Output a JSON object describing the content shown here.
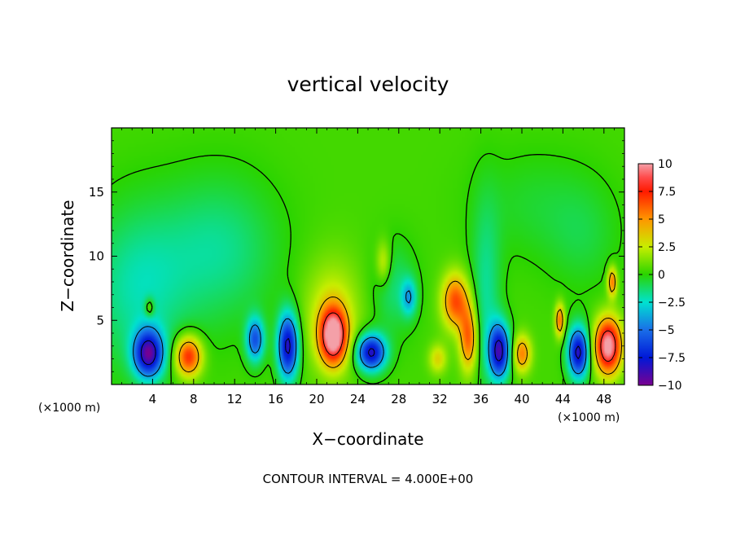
{
  "chart_data": {
    "type": "heatmap",
    "title": "vertical velocity",
    "xlabel": "X−coordinate",
    "ylabel": "Z−coordinate",
    "x_unit_label": "(×1000 m)",
    "y_unit_label": "(×1000 m)",
    "xlim": [
      0,
      50
    ],
    "ylim": [
      0,
      20
    ],
    "x_ticks": [
      4,
      8,
      12,
      16,
      20,
      24,
      28,
      32,
      36,
      40,
      44,
      48
    ],
    "x_tick_labels": [
      "4",
      "8",
      "12",
      "16",
      "20",
      "24",
      "28",
      "32",
      "36",
      "40",
      "44",
      "48"
    ],
    "y_ticks": [
      5,
      10,
      15
    ],
    "y_tick_labels": [
      "5",
      "10",
      "15"
    ],
    "colorbar": {
      "min": -10,
      "max": 10,
      "ticks": [
        10,
        7.5,
        5,
        2.5,
        0,
        -2.5,
        -5,
        -7.5,
        -10
      ],
      "tick_labels": [
        "10",
        "7.5",
        "5",
        "2.5",
        "0",
        "−2.5",
        "−5",
        "−7.5",
        "−10"
      ],
      "stops": [
        {
          "value": 10,
          "color": "#f4a0a8"
        },
        {
          "value": 8.75,
          "color": "#ff4a4a"
        },
        {
          "value": 7.5,
          "color": "#ff1a00"
        },
        {
          "value": 5,
          "color": "#ff9600"
        },
        {
          "value": 2.5,
          "color": "#c8ee00"
        },
        {
          "value": 0,
          "color": "#2ad400"
        },
        {
          "value": -2.5,
          "color": "#00e2d0"
        },
        {
          "value": -5,
          "color": "#1a6ee8"
        },
        {
          "value": -7.5,
          "color": "#0018d8"
        },
        {
          "value": -10,
          "color": "#7a0090"
        }
      ]
    },
    "background_value": 0.4,
    "features": [
      {
        "x": 3.6,
        "z": 2.4,
        "w": -9.2,
        "sx": 1.0,
        "sz": 1.3
      },
      {
        "x": 2.5,
        "z": 7.5,
        "w": -2.4,
        "sx": 3.5,
        "sz": 4.5
      },
      {
        "x": 3.7,
        "z": 6.0,
        "w": 3.2,
        "sx": 0.3,
        "sz": 0.5
      },
      {
        "x": 7.5,
        "z": 2.2,
        "w": 7.4,
        "sx": 0.9,
        "sz": 1.1
      },
      {
        "x": 10.5,
        "z": 10.5,
        "w": -2.1,
        "sx": 4.0,
        "sz": 4.0
      },
      {
        "x": 14.0,
        "z": 3.5,
        "w": -6.2,
        "sx": 0.6,
        "sz": 1.2
      },
      {
        "x": 17.2,
        "z": 3.0,
        "w": -9.0,
        "sx": 0.7,
        "sz": 1.8
      },
      {
        "x": 21.6,
        "z": 3.8,
        "w": 10.5,
        "sx": 0.9,
        "sz": 1.5
      },
      {
        "x": 21.5,
        "z": 5.5,
        "w": 2.5,
        "sx": 2.0,
        "sz": 3.0
      },
      {
        "x": 25.3,
        "z": 2.5,
        "w": -9.0,
        "sx": 1.0,
        "sz": 1.0
      },
      {
        "x": 27.5,
        "z": 7.5,
        "w": -1.8,
        "sx": 1.5,
        "sz": 2.5
      },
      {
        "x": 29.0,
        "z": 6.8,
        "w": -3.8,
        "sx": 0.5,
        "sz": 1.0
      },
      {
        "x": 26.5,
        "z": 9.5,
        "w": 2.8,
        "sx": 0.5,
        "sz": 1.2
      },
      {
        "x": 33.5,
        "z": 6.5,
        "w": 6.2,
        "sx": 0.9,
        "sz": 1.5
      },
      {
        "x": 34.8,
        "z": 3.6,
        "w": 6.0,
        "sx": 0.6,
        "sz": 1.8
      },
      {
        "x": 31.8,
        "z": 2.0,
        "w": 3.0,
        "sx": 0.6,
        "sz": 0.8
      },
      {
        "x": 36.5,
        "z": 7.0,
        "w": -2.2,
        "sx": 1.0,
        "sz": 5.0
      },
      {
        "x": 37.8,
        "z": 2.6,
        "w": -9.0,
        "sx": 0.7,
        "sz": 1.5
      },
      {
        "x": 40.0,
        "z": 2.4,
        "w": 5.2,
        "sx": 0.6,
        "sz": 1.0
      },
      {
        "x": 43.7,
        "z": 5.0,
        "w": 6.0,
        "sx": 0.3,
        "sz": 0.9
      },
      {
        "x": 45.5,
        "z": 2.5,
        "w": -9.0,
        "sx": 0.7,
        "sz": 1.4
      },
      {
        "x": 48.4,
        "z": 3.0,
        "w": 10.5,
        "sx": 0.9,
        "sz": 1.5
      },
      {
        "x": 48.8,
        "z": 8.0,
        "w": 6.0,
        "sx": 0.3,
        "sz": 0.8
      },
      {
        "x": 46.0,
        "z": 11.5,
        "w": -1.0,
        "sx": 2.5,
        "sz": 3.0
      },
      {
        "x": 41.0,
        "z": 14.0,
        "w": -0.9,
        "sx": 4.0,
        "sz": 3.0
      }
    ],
    "contour_levels": [
      -8,
      -4,
      0,
      4,
      8
    ],
    "footer": "CONTOUR INTERVAL = 4.000E+00"
  }
}
